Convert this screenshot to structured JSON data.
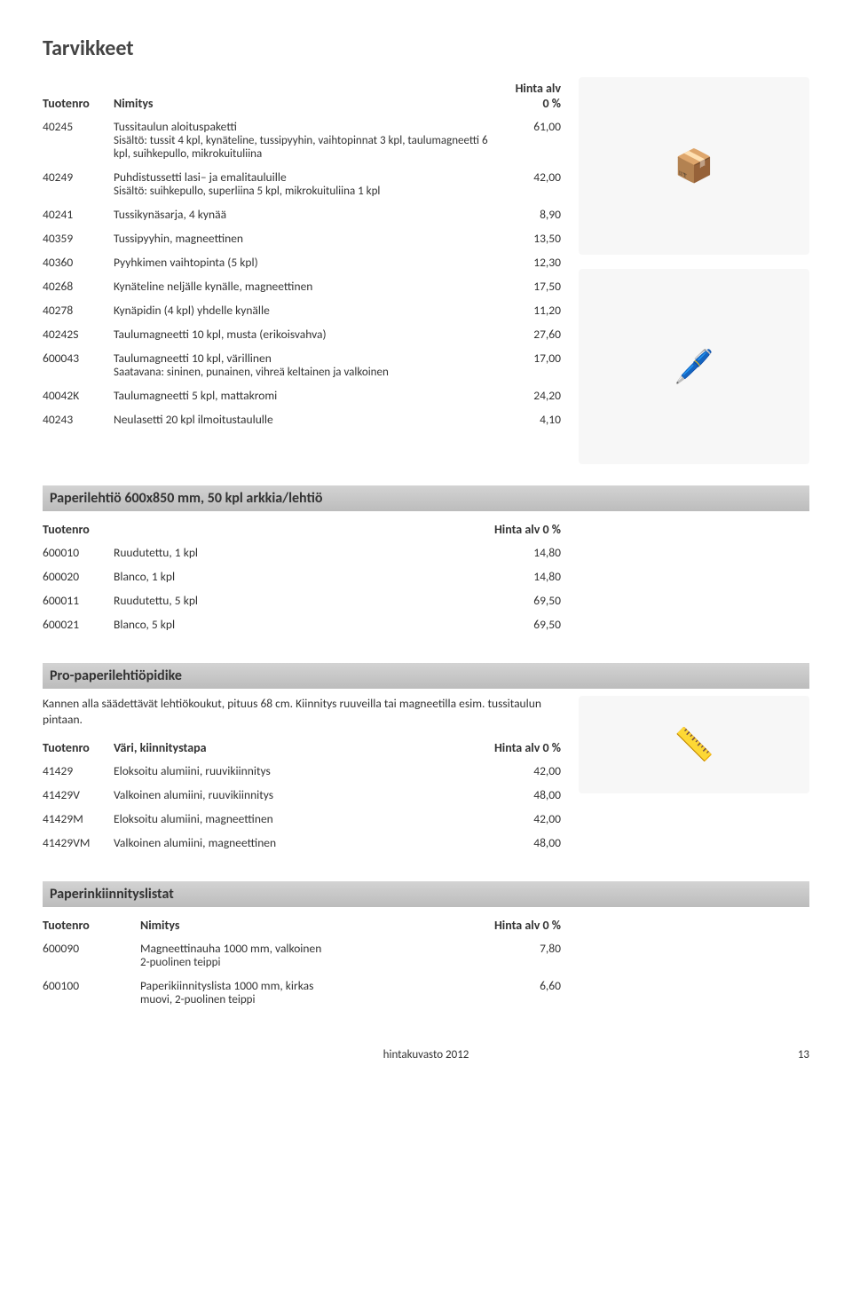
{
  "page": {
    "title": "Tarvikkeet",
    "footer_center": "hintakuvasto 2012",
    "footer_page": "13"
  },
  "tarvikkeet": {
    "headers": {
      "c1": "Tuotenro",
      "c2": "Nimitys",
      "c3": "Hinta alv 0 %"
    },
    "rows": [
      {
        "code": "40245",
        "name": "Tussitaulun aloituspaketti",
        "desc": "Sisältö: tussit 4 kpl, kynäteline, tussipyyhin, vaihtopinnat 3 kpl, taulumagneetti 6 kpl, suihkepullo, mikrokuituliina",
        "price": "61,00"
      },
      {
        "code": "40249",
        "name": "Puhdistussetti lasi– ja emalitauluille",
        "desc": "Sisältö: suihkepullo, superliina 5 kpl, mikrokuituliina 1 kpl",
        "price": "42,00"
      },
      {
        "code": "40241",
        "name": "Tussikynäsarja, 4 kynää",
        "price": "8,90"
      },
      {
        "code": "40359",
        "name": "Tussipyyhin, magneettinen",
        "price": "13,50"
      },
      {
        "code": "40360",
        "name": "Pyyhkimen vaihtopinta (5 kpl)",
        "price": "12,30"
      },
      {
        "code": "40268",
        "name": "Kynäteline neljälle kynälle, magneettinen",
        "price": "17,50"
      },
      {
        "code": "40278",
        "name": "Kynäpidin (4 kpl) yhdelle kynälle",
        "price": "11,20"
      },
      {
        "code": "40242S",
        "name": "Taulumagneetti 10 kpl, musta (erikoisvahva)",
        "price": "27,60"
      },
      {
        "code": "600043",
        "name": "Taulumagneetti 10 kpl, värillinen",
        "desc": "Saatavana: sininen, punainen, vihreä keltainen ja valkoinen",
        "price": "17,00"
      },
      {
        "code": "40042K",
        "name": "Taulumagneetti 5 kpl, mattakromi",
        "price": "24,20"
      },
      {
        "code": "40243",
        "name": "Neulasetti 20 kpl ilmoitustaululle",
        "price": "4,10"
      }
    ]
  },
  "paperilehtio": {
    "title": "Paperilehtiö 600x850 mm, 50 kpl arkkia/lehtiö",
    "headers": {
      "c1": "Tuotenro",
      "c3": "Hinta alv 0 %"
    },
    "rows": [
      {
        "code": "600010",
        "name": "Ruudutettu, 1 kpl",
        "price": "14,80"
      },
      {
        "code": "600020",
        "name": "Blanco, 1 kpl",
        "price": "14,80"
      },
      {
        "code": "600011",
        "name": "Ruudutettu, 5 kpl",
        "price": "69,50"
      },
      {
        "code": "600021",
        "name": "Blanco, 5 kpl",
        "price": "69,50"
      }
    ]
  },
  "pidike": {
    "title": "Pro-paperilehtiöpidike",
    "intro": "Kannen alla säädettävät lehtiökoukut, pituus 68 cm. Kiinnitys ruuveilla tai magneetilla esim. tussitaulun pintaan.",
    "headers": {
      "c1": "Tuotenro",
      "c2": "Väri, kiinnitystapa",
      "c3": "Hinta alv 0 %"
    },
    "rows": [
      {
        "code": "41429",
        "name": "Eloksoitu alumiini, ruuvikiinnitys",
        "price": "42,00"
      },
      {
        "code": "41429V",
        "name": "Valkoinen alumiini, ruuvikiinnitys",
        "price": "48,00"
      },
      {
        "code": "41429M",
        "name": "Eloksoitu alumiini, magneettinen",
        "price": "42,00"
      },
      {
        "code": "41429VM",
        "name": "Valkoinen alumiini, magneettinen",
        "price": "48,00"
      }
    ]
  },
  "listat": {
    "title": "Paperinkiinnityslistat",
    "headers": {
      "c1": "Tuotenro",
      "c2": "Nimitys",
      "c3": "Hinta alv 0 %"
    },
    "rows": [
      {
        "code": "600090",
        "name": "Magneettinauha 1000 mm, valkoinen",
        "desc": "2-puolinen teippi",
        "price": "7,80"
      },
      {
        "code": "600100",
        "name": "Paperikiinnityslista 1000 mm, kirkas",
        "desc": "muovi, 2-puolinen teippi",
        "price": "6,60"
      }
    ]
  }
}
